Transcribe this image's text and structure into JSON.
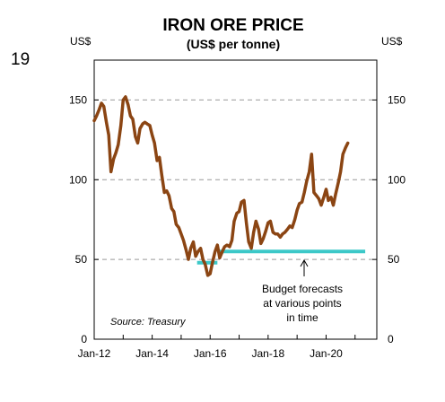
{
  "page_number": "19",
  "chart_data": {
    "type": "line",
    "title": "IRON ORE PRICE",
    "subtitle": "(US$ per tonne)",
    "left_unit": "US$",
    "right_unit": "US$",
    "ylim": [
      0,
      175
    ],
    "yticks": [
      0,
      50,
      100,
      150
    ],
    "x_range": [
      2012.0,
      2021.75
    ],
    "xtick_labels": [
      {
        "label": "Jan-12",
        "x": 2012.0
      },
      {
        "label": "Jan-14",
        "x": 2014.0
      },
      {
        "label": "Jan-16",
        "x": 2016.0
      },
      {
        "label": "Jan-18",
        "x": 2018.0
      },
      {
        "label": "Jan-20",
        "x": 2020.0
      }
    ],
    "grid": "horizontal dashed",
    "annotation": [
      "Budget forecasts",
      "at various points",
      "in time"
    ],
    "source": "Source: Treasury",
    "colors": {
      "price": "#8B4513",
      "forecast": "#3CC8C8",
      "grid": "#999999"
    },
    "series": [
      {
        "values": [
          [
            2012.0,
            137
          ],
          [
            2012.08,
            140
          ],
          [
            2012.17,
            144
          ],
          [
            2012.25,
            148
          ],
          [
            2012.33,
            146
          ],
          [
            2012.42,
            136
          ],
          [
            2012.5,
            128
          ],
          [
            2012.58,
            105
          ],
          [
            2012.67,
            113
          ],
          [
            2012.75,
            117
          ],
          [
            2012.83,
            122
          ],
          [
            2012.92,
            134
          ],
          [
            2013.0,
            150
          ],
          [
            2013.08,
            152
          ],
          [
            2013.17,
            147
          ],
          [
            2013.25,
            140
          ],
          [
            2013.33,
            138
          ],
          [
            2013.42,
            127
          ],
          [
            2013.5,
            123
          ],
          [
            2013.58,
            132
          ],
          [
            2013.67,
            135
          ],
          [
            2013.75,
            136
          ],
          [
            2013.83,
            135
          ],
          [
            2013.92,
            134
          ],
          [
            2014.0,
            128
          ],
          [
            2014.08,
            123
          ],
          [
            2014.17,
            112
          ],
          [
            2014.25,
            114
          ],
          [
            2014.33,
            103
          ],
          [
            2014.42,
            92
          ],
          [
            2014.5,
            93
          ],
          [
            2014.58,
            90
          ],
          [
            2014.67,
            82
          ],
          [
            2014.75,
            80
          ],
          [
            2014.83,
            72
          ],
          [
            2014.92,
            70
          ],
          [
            2015.0,
            66
          ],
          [
            2015.08,
            62
          ],
          [
            2015.17,
            56
          ],
          [
            2015.25,
            50
          ],
          [
            2015.33,
            57
          ],
          [
            2015.42,
            61
          ],
          [
            2015.5,
            52
          ],
          [
            2015.58,
            55
          ],
          [
            2015.67,
            57
          ],
          [
            2015.75,
            50
          ],
          [
            2015.83,
            47
          ],
          [
            2015.92,
            40
          ],
          [
            2016.0,
            41
          ],
          [
            2016.08,
            48
          ],
          [
            2016.17,
            55
          ],
          [
            2016.25,
            59
          ],
          [
            2016.33,
            51
          ],
          [
            2016.42,
            55
          ],
          [
            2016.5,
            58
          ],
          [
            2016.58,
            59
          ],
          [
            2016.67,
            58
          ],
          [
            2016.75,
            62
          ],
          [
            2016.83,
            74
          ],
          [
            2016.92,
            79
          ],
          [
            2017.0,
            80
          ],
          [
            2017.08,
            86
          ],
          [
            2017.17,
            87
          ],
          [
            2017.25,
            73
          ],
          [
            2017.33,
            61
          ],
          [
            2017.42,
            57
          ],
          [
            2017.5,
            67
          ],
          [
            2017.58,
            74
          ],
          [
            2017.67,
            69
          ],
          [
            2017.75,
            60
          ],
          [
            2017.83,
            63
          ],
          [
            2017.92,
            68
          ],
          [
            2018.0,
            73
          ],
          [
            2018.08,
            74
          ],
          [
            2018.17,
            67
          ],
          [
            2018.25,
            66
          ],
          [
            2018.33,
            66
          ],
          [
            2018.42,
            64
          ],
          [
            2018.5,
            66
          ],
          [
            2018.58,
            67
          ],
          [
            2018.67,
            69
          ],
          [
            2018.75,
            71
          ],
          [
            2018.83,
            70
          ],
          [
            2018.92,
            75
          ],
          [
            2019.0,
            81
          ],
          [
            2019.08,
            85
          ],
          [
            2019.17,
            86
          ],
          [
            2019.25,
            92
          ],
          [
            2019.33,
            99
          ],
          [
            2019.42,
            105
          ],
          [
            2019.5,
            116
          ],
          [
            2019.58,
            92
          ],
          [
            2019.67,
            90
          ],
          [
            2019.75,
            88
          ],
          [
            2019.83,
            84
          ],
          [
            2019.92,
            89
          ],
          [
            2020.0,
            94
          ],
          [
            2020.08,
            87
          ],
          [
            2020.17,
            89
          ],
          [
            2020.25,
            84
          ],
          [
            2020.33,
            91
          ],
          [
            2020.42,
            98
          ],
          [
            2020.5,
            105
          ],
          [
            2020.58,
            116
          ],
          [
            2020.67,
            120
          ],
          [
            2020.75,
            123
          ]
        ]
      },
      {
        "segments": [
          [
            [
              2015.55,
              48
            ],
            [
              2016.25,
              48
            ]
          ],
          [
            [
              2016.25,
              55
            ],
            [
              2021.35,
              55
            ]
          ]
        ]
      }
    ]
  }
}
